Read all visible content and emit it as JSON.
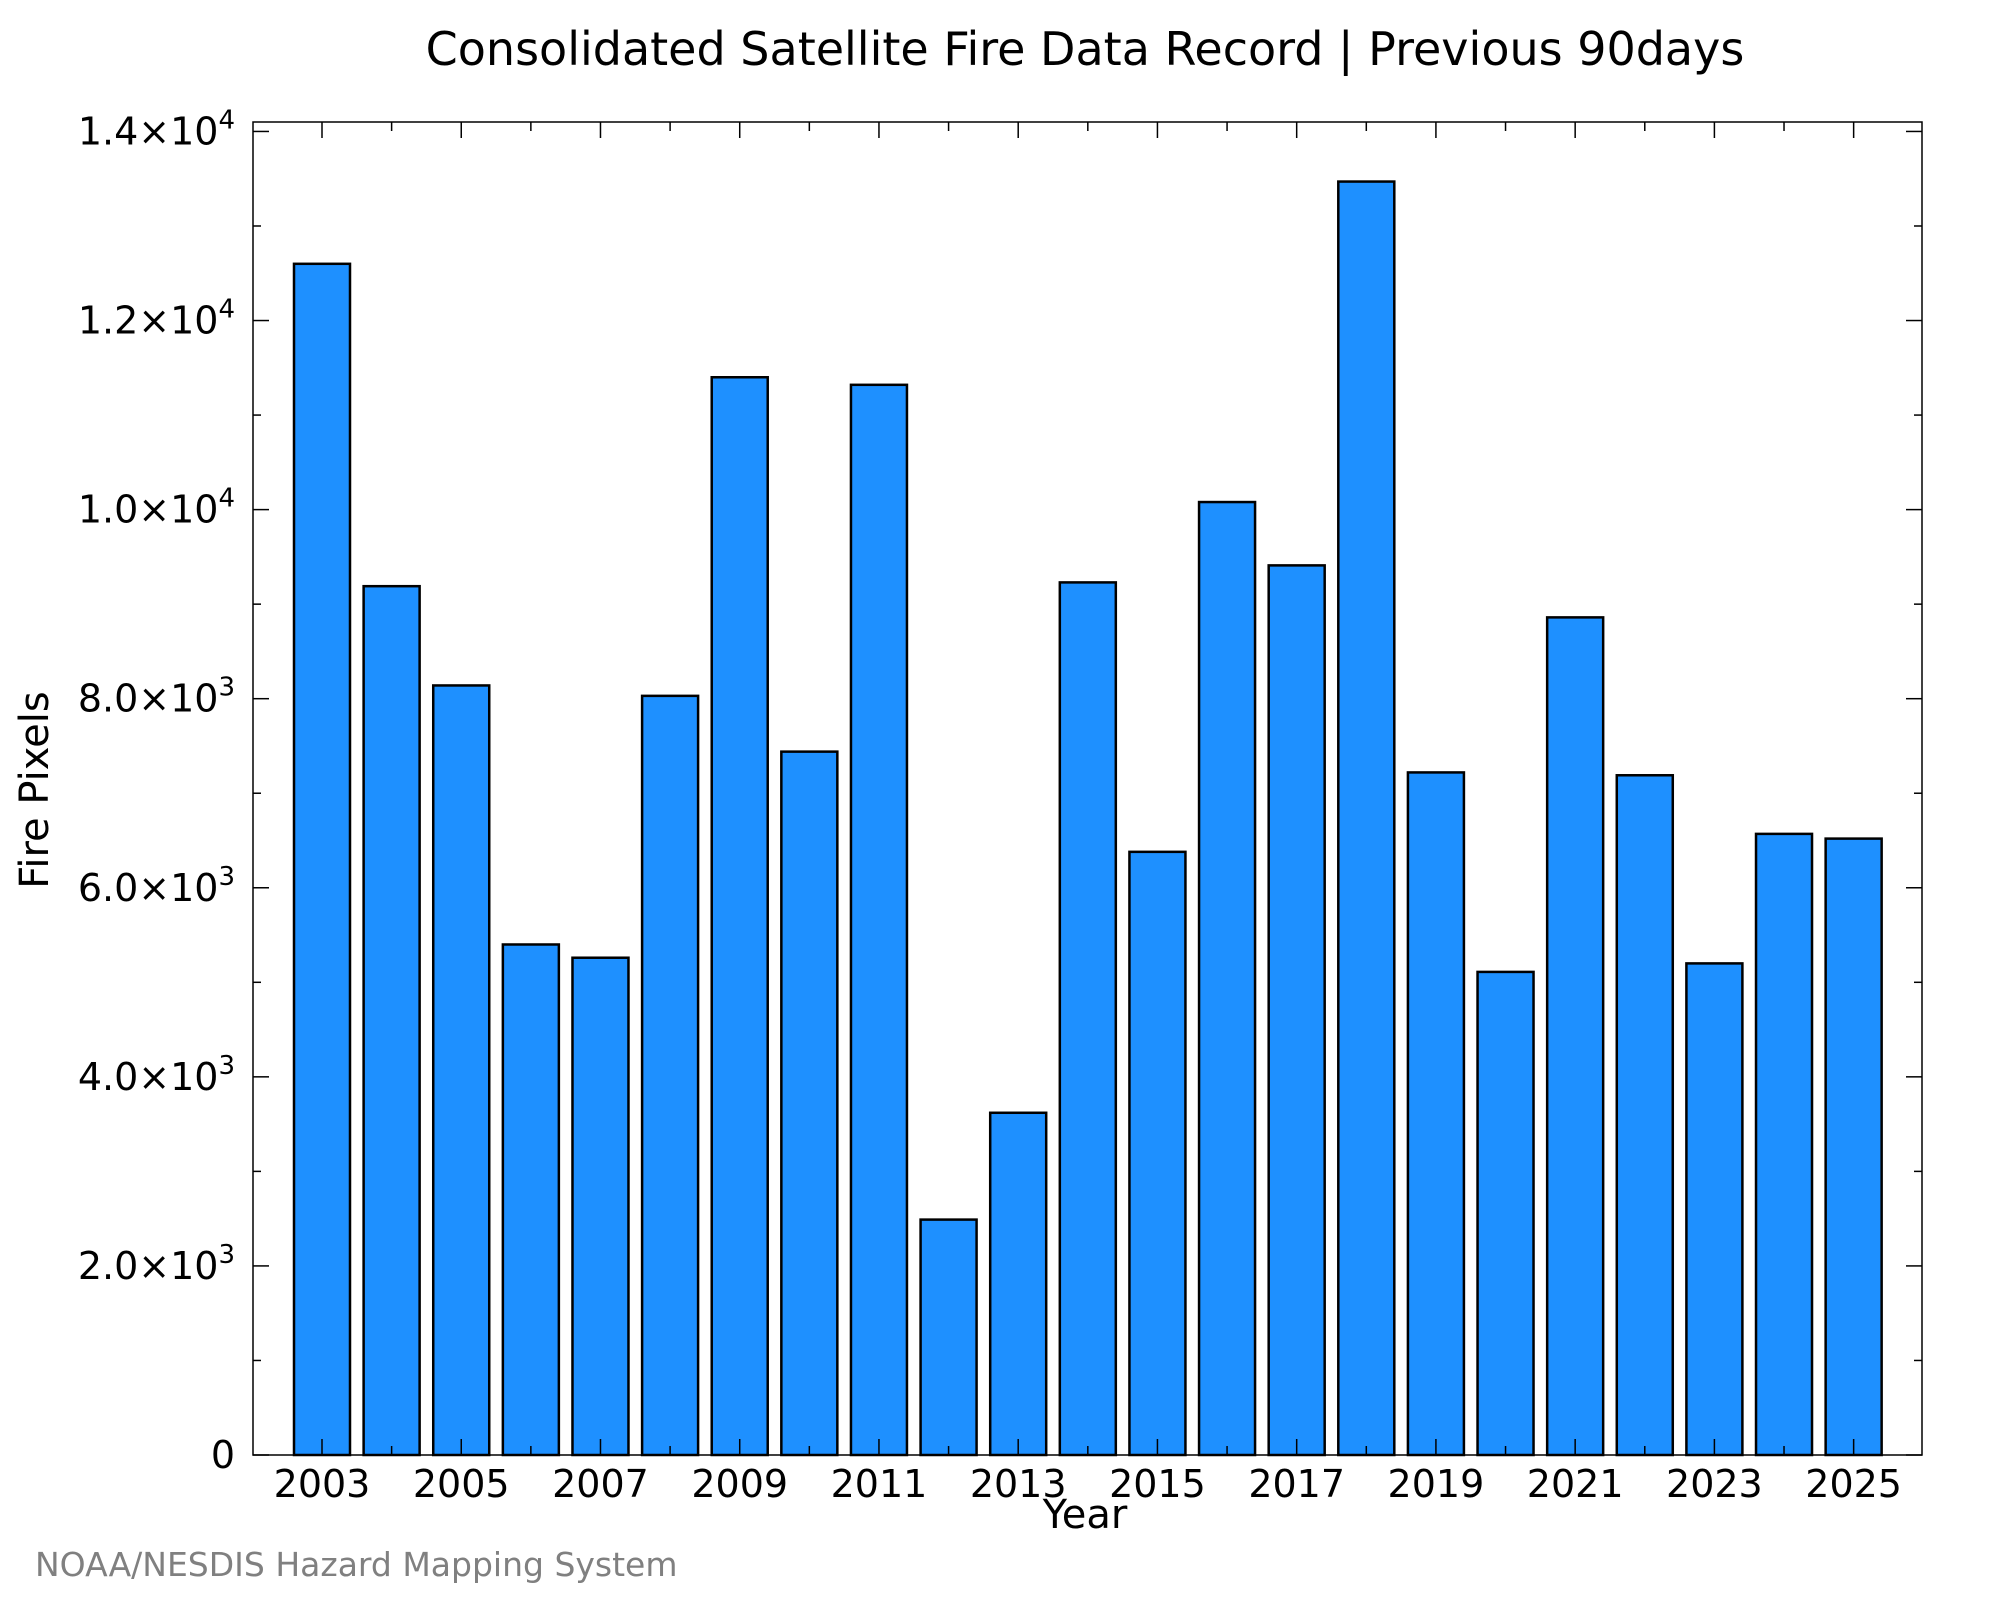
{
  "chart_data": {
    "type": "bar",
    "title": "Consolidated Satellite Fire Data Record | Previous 90days",
    "xlabel": "Year",
    "ylabel": "Fire Pixels",
    "categories": [
      "2003",
      "2004",
      "2005",
      "2006",
      "2007",
      "2008",
      "2009",
      "2010",
      "2011",
      "2012",
      "2013",
      "2014",
      "2015",
      "2016",
      "2017",
      "2018",
      "2019",
      "2020",
      "2021",
      "2022",
      "2023",
      "2024",
      "2025"
    ],
    "values": [
      12600,
      9190,
      8140,
      5400,
      5260,
      8030,
      11400,
      7440,
      11320,
      2490,
      3620,
      9230,
      6380,
      10080,
      9410,
      13470,
      7220,
      5110,
      8860,
      7190,
      5200,
      6570,
      6520
    ],
    "x_tick_labels": [
      "2003",
      "2005",
      "2007",
      "2009",
      "2011",
      "2013",
      "2015",
      "2017",
      "2019",
      "2021",
      "2023",
      "2025"
    ],
    "y_ticks": [
      {
        "value": 0,
        "mantissa": "0",
        "exponent": ""
      },
      {
        "value": 2000,
        "mantissa": "2.0×10",
        "exponent": "3"
      },
      {
        "value": 4000,
        "mantissa": "4.0×10",
        "exponent": "3"
      },
      {
        "value": 6000,
        "mantissa": "6.0×10",
        "exponent": "3"
      },
      {
        "value": 8000,
        "mantissa": "8.0×10",
        "exponent": "3"
      },
      {
        "value": 10000,
        "mantissa": "1.0×10",
        "exponent": "4"
      },
      {
        "value": 12000,
        "mantissa": "1.2×10",
        "exponent": "4"
      },
      {
        "value": 14000,
        "mantissa": "1.4×10",
        "exponent": "4"
      }
    ],
    "ylim": [
      0,
      14100
    ],
    "grid": false,
    "bar_color": "#1e90ff",
    "edge_color": "#000000"
  },
  "credit": "NOAA/NESDIS Hazard Mapping System"
}
